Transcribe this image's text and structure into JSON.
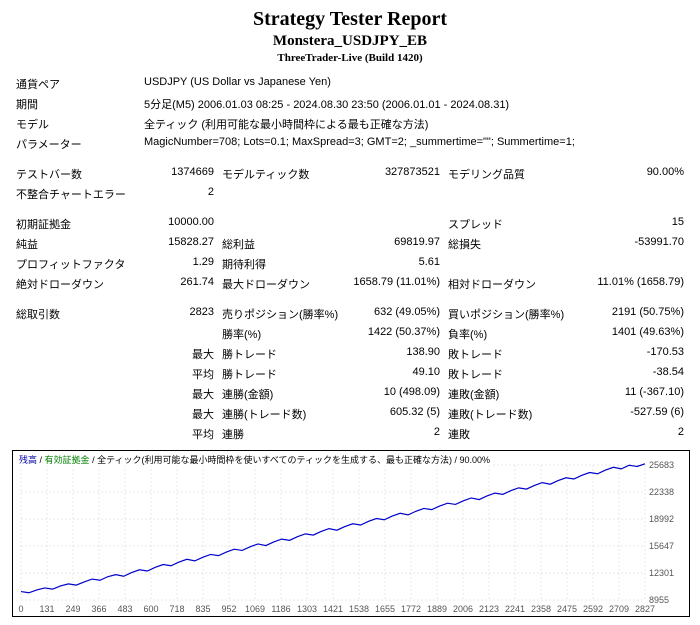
{
  "header": {
    "title": "Strategy Tester Report",
    "subtitle": "Monstera_USDJPY_EB",
    "subsub": "ThreeTrader-Live (Build 1420)"
  },
  "info": {
    "pair_label": "通貨ペア",
    "pair_value": "USDJPY (US Dollar vs Japanese Yen)",
    "period_label": "期間",
    "period_value": "5分足(M5) 2006.01.03 08:25 - 2024.08.30 23:50 (2006.01.01 - 2024.08.31)",
    "model_label": "モデル",
    "model_value": "全ティック (利用可能な最小時間枠による最も正確な方法)",
    "params_label": "パラメーター",
    "params_value": "MagicNumber=708; Lots=0.1; MaxSpread=3; GMT=2; _summertime=\"\"; Summertime=1;"
  },
  "stats": {
    "bars_label": "テストバー数",
    "bars": "1374669",
    "ticks_label": "モデルティック数",
    "ticks": "327873521",
    "quality_label": "モデリング品質",
    "quality": "90.00%",
    "mismatch_label": "不整合チャートエラー",
    "mismatch": "2",
    "deposit_label": "初期証拠金",
    "deposit": "10000.00",
    "spread_label": "スプレッド",
    "spread": "15",
    "netprofit_label": "純益",
    "netprofit": "15828.27",
    "gross_profit_label": "総利益",
    "gross_profit": "69819.97",
    "gross_loss_label": "総損失",
    "gross_loss": "-53991.70",
    "pf_label": "プロフィットファクタ",
    "pf": "1.29",
    "expected_label": "期待利得",
    "expected": "5.61",
    "abs_dd_label": "絶対ドローダウン",
    "abs_dd": "261.74",
    "max_dd_label": "最大ドローダウン",
    "max_dd": "1658.79 (11.01%)",
    "rel_dd_label": "相対ドローダウン",
    "rel_dd": "11.01% (1658.79)",
    "total_trades_label": "総取引数",
    "total_trades": "2823",
    "short_label": "売りポジション(勝率%)",
    "short": "632 (49.05%)",
    "long_label": "買いポジション(勝率%)",
    "long": "2191 (50.75%)",
    "winrate_label": "勝率(%)",
    "winrate": "1422 (50.37%)",
    "loserate_label": "負率(%)",
    "loserate": "1401 (49.63%)",
    "max_win_label": "勝トレード",
    "max_win": "138.90",
    "max_loss_label": "敗トレード",
    "max_loss": "-170.53",
    "avg_win_label": "勝トレード",
    "avg_win": "49.10",
    "avg_loss_label": "敗トレード",
    "avg_loss": "-38.54",
    "max_cons_win_a_label": "連勝(金額)",
    "max_cons_win_a": "10 (498.09)",
    "max_cons_loss_a_label": "連敗(金額)",
    "max_cons_loss_a": "11 (-367.10)",
    "max_cons_win_t_label": "連勝(トレード数)",
    "max_cons_win_t": "605.32 (5)",
    "max_cons_loss_t_label": "連敗(トレード数)",
    "max_cons_loss_t": "-527.59 (6)",
    "avg_cons_win_label": "連勝",
    "avg_cons_win": "2",
    "avg_cons_loss_label": "連敗",
    "avg_cons_loss": "2",
    "max_prefix": "最大",
    "avg_prefix": "平均"
  },
  "chart": {
    "legend_balance": "残高",
    "legend_equity": "有効証拠金",
    "legend_text": " / 全ティック(利用可能な最小時間枠を使いすべてのティックを生成する、最も正確な方法) / 90.00%",
    "x_ticks": [
      "0",
      "131",
      "249",
      "366",
      "483",
      "600",
      "718",
      "835",
      "952",
      "1069",
      "1186",
      "1303",
      "1421",
      "1538",
      "1655",
      "1772",
      "1889",
      "2006",
      "2123",
      "2241",
      "2358",
      "2475",
      "2592",
      "2709",
      "2827"
    ],
    "y_ticks": [
      "25683",
      "22338",
      "18992",
      "15647",
      "12301",
      "8955"
    ],
    "line_color": "#0000cc",
    "grid_color": "#d0d0d0",
    "bg": "#ffffff",
    "equity_values": [
      10000,
      9850,
      10200,
      10450,
      10300,
      10700,
      10950,
      10800,
      11200,
      11550,
      11400,
      11850,
      12100,
      11900,
      12350,
      12700,
      12550,
      13000,
      13350,
      13200,
      13650,
      14000,
      13800,
      14250,
      14600,
      14450,
      14900,
      15250,
      15100,
      15550,
      15900,
      15700,
      16150,
      16500,
      16350,
      16800,
      17150,
      17000,
      17450,
      17800,
      17600,
      18050,
      18400,
      18250,
      18700,
      19050,
      18900,
      19350,
      19700,
      19500,
      19950,
      20300,
      20150,
      20600,
      20950,
      20800,
      21250,
      21600,
      21400,
      21850,
      22200,
      22050,
      22500,
      22850,
      22700,
      23150,
      23500,
      23300,
      23750,
      24100,
      23950,
      24400,
      24750,
      24600,
      25050,
      25400,
      25200,
      25650,
      25500,
      25828
    ],
    "y_min": 8955,
    "y_max": 25683,
    "x_count": 80
  }
}
